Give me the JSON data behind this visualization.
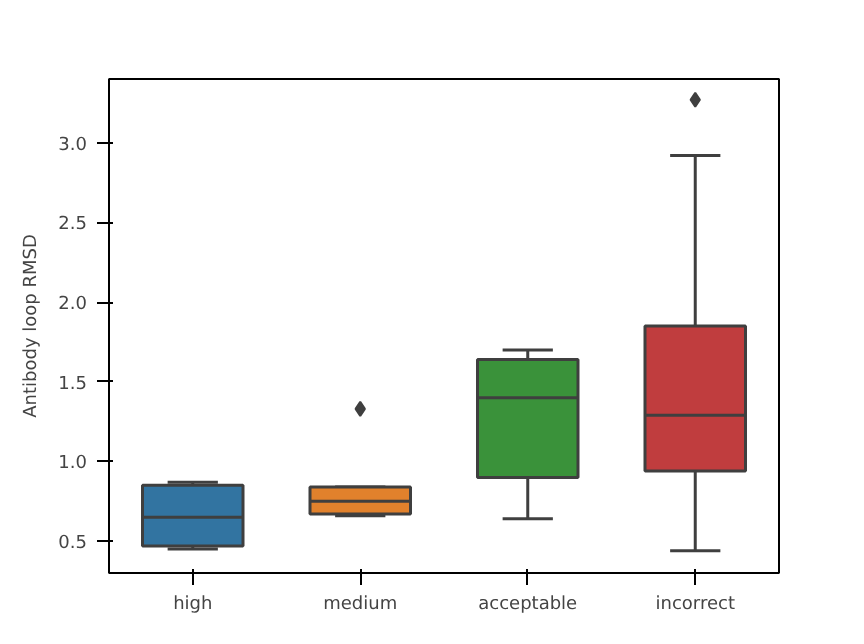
{
  "chart_data": {
    "type": "box",
    "ylabel": "Antibody loop RMSD",
    "categories": [
      "high",
      "medium",
      "acceptable",
      "incorrect"
    ],
    "colors": [
      "#3274a1",
      "#e1812c",
      "#3a923a",
      "#c03d3e"
    ],
    "boxes": [
      {
        "low": 0.45,
        "q1": 0.47,
        "median": 0.65,
        "q3": 0.85,
        "high": 0.87
      },
      {
        "low": 0.66,
        "q1": 0.67,
        "median": 0.75,
        "q3": 0.84,
        "high": 0.84,
        "outliers": [
          1.33
        ]
      },
      {
        "low": 0.64,
        "q1": 0.9,
        "median": 1.4,
        "q3": 1.64,
        "high": 1.7
      },
      {
        "low": 0.44,
        "q1": 0.94,
        "median": 1.29,
        "q3": 1.85,
        "high": 2.92,
        "outliers": [
          3.27
        ]
      }
    ],
    "ylim": [
      0.3,
      3.4
    ],
    "yticks": [
      {
        "value": 0.5,
        "label": "0.5"
      },
      {
        "value": 1.0,
        "label": "1.0"
      },
      {
        "value": 1.5,
        "label": "1.5"
      },
      {
        "value": 2.0,
        "label": "2.0"
      },
      {
        "value": 2.5,
        "label": "2.5"
      },
      {
        "value": 3.0,
        "label": "3.0"
      }
    ],
    "grid": false
  }
}
